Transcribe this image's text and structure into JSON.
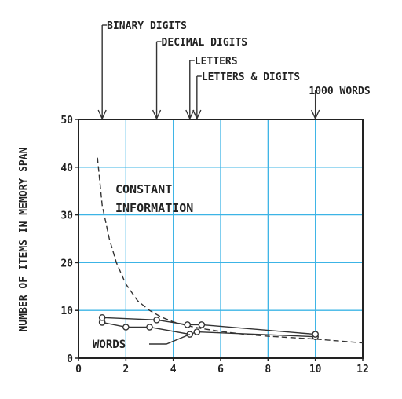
{
  "chart_data": {
    "type": "line",
    "xlabel": "",
    "ylabel": "NUMBER OF ITEMS IN MEMORY SPAN",
    "xlim": [
      0,
      12
    ],
    "ylim": [
      0,
      50
    ],
    "x_ticks": [
      "0",
      "2",
      "4",
      "6",
      "8",
      "10",
      "12"
    ],
    "y_ticks": [
      "0",
      "10",
      "20",
      "30",
      "40",
      "50"
    ],
    "grid": true,
    "grid_color": "#3cb4e6",
    "series": [
      {
        "name": "CONSTANT INFORMATION",
        "style": "dashed",
        "x": [
          0.8,
          1.0,
          1.3,
          1.6,
          2.0,
          2.5,
          3.0,
          3.5,
          4.0,
          4.6,
          5.2,
          6.0,
          7.0,
          8.0,
          9.0,
          10.0,
          11.0,
          12.0
        ],
        "y": [
          42,
          32,
          25,
          20,
          15.5,
          12,
          10,
          8.6,
          7.6,
          6.8,
          6.2,
          5.6,
          5.0,
          4.6,
          4.3,
          4.0,
          3.6,
          3.2
        ]
      },
      {
        "name": "WORDS",
        "style": "solid",
        "markers": "circle",
        "x": [
          1.0,
          2.0,
          3.0,
          4.7,
          5.0,
          10.0
        ],
        "y": [
          7.5,
          6.5,
          6.5,
          5.0,
          5.5,
          4.5
        ]
      },
      {
        "name": "",
        "style": "solid",
        "markers": "circle",
        "x": [
          1.0,
          3.3,
          4.6,
          5.2,
          10.0
        ],
        "y": [
          8.5,
          8.0,
          7.0,
          7.0,
          5.0
        ]
      }
    ],
    "annotations": {
      "constant_line1": "CONSTANT",
      "constant_line2": "INFORMATION",
      "words": "WORDS"
    },
    "top_markers": [
      {
        "label": "BINARY DIGITS",
        "x": 1.0
      },
      {
        "label": "DECIMAL DIGITS",
        "x": 3.3
      },
      {
        "label": "LETTERS",
        "x": 4.7
      },
      {
        "label": "LETTERS & DIGITS",
        "x": 5.0
      },
      {
        "label": "1000 WORDS",
        "x": 10.0
      }
    ]
  }
}
